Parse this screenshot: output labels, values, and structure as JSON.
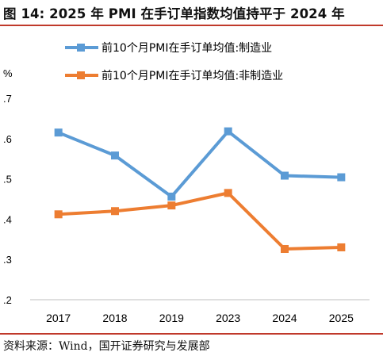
{
  "header": {
    "title": "图 14: 2025 年 PMI 在手订单指数均值持平于 2024 年"
  },
  "footer": {
    "source": "资料来源：Wind，国开证券研究与发展部"
  },
  "chart_data": {
    "type": "line",
    "title": "",
    "xlabel": "",
    "ylabel": "",
    "y_unit_label": "%",
    "categories": [
      "2017",
      "2018",
      "2019",
      "2023",
      "2024",
      "2025"
    ],
    "ylim": [
      0.2,
      0.7
    ],
    "yticks": [
      0.2,
      0.3,
      0.4,
      0.5,
      0.6,
      0.7
    ],
    "ytick_labels": [
      ".2",
      ".3",
      ".4",
      ".5",
      ".6",
      ".7"
    ],
    "legend_position": "top",
    "grid": false,
    "series": [
      {
        "name": "前10个月PMI在手订单均值:制造业",
        "color": "#5b9bd5",
        "values": [
          0.615,
          0.558,
          0.456,
          0.618,
          0.508,
          0.504
        ]
      },
      {
        "name": "前10个月PMI在手订单均值:非制造业",
        "color": "#ed7d31",
        "values": [
          0.412,
          0.42,
          0.434,
          0.465,
          0.326,
          0.33
        ]
      }
    ]
  }
}
